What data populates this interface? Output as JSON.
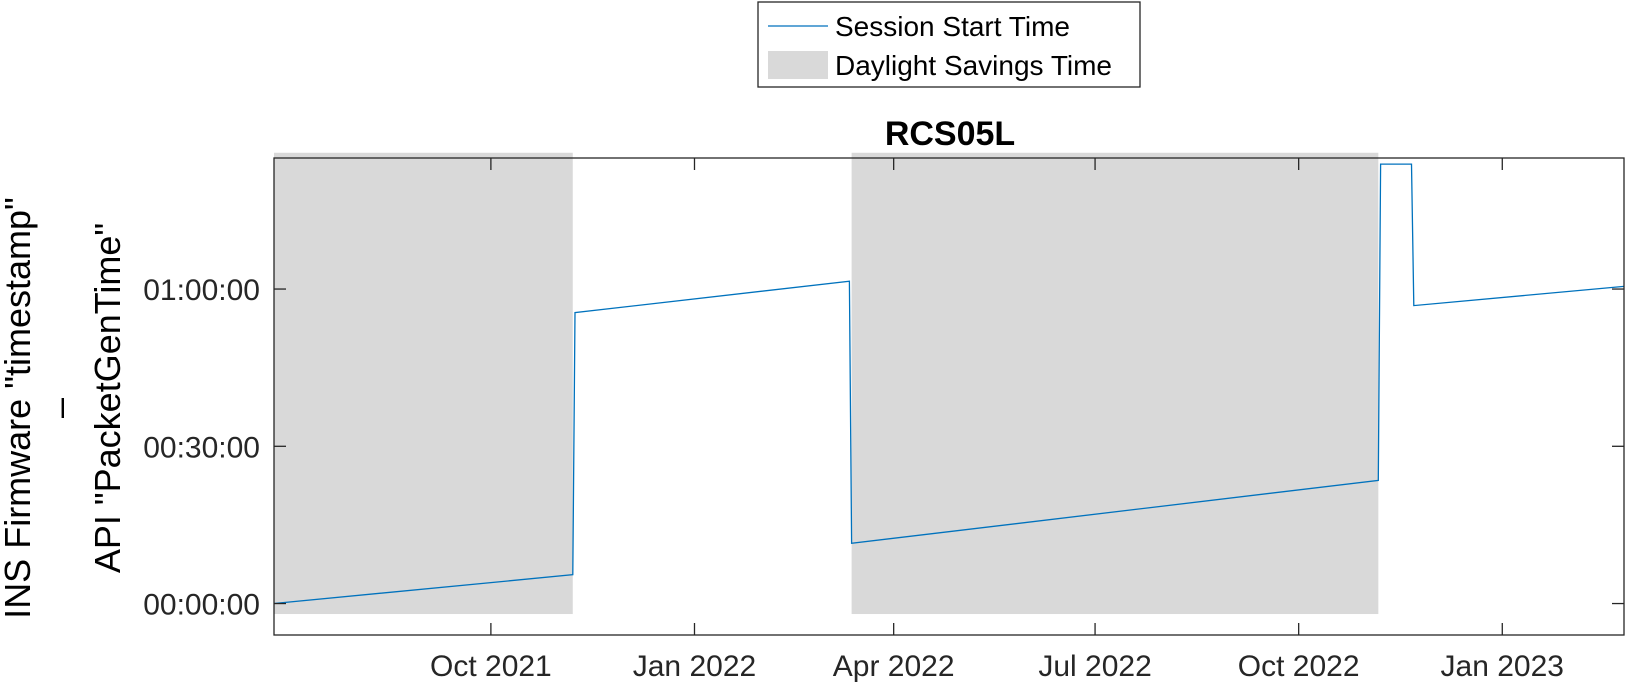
{
  "chart_data": {
    "type": "line",
    "title": "RCS05L",
    "ylabel_line1": "INS Firmware \"timestamp\"",
    "ylabel_line2": "–",
    "ylabel_line3": "API \"PacketGenTime\"",
    "xlabel": "",
    "x_type": "date",
    "xlim": [
      "2021-06-25",
      "2023-02-25"
    ],
    "ylim_seconds": [
      -360,
      5100
    ],
    "xticks": [
      {
        "date": "2021-10-01",
        "label": "Oct 2021"
      },
      {
        "date": "2022-01-01",
        "label": "Jan 2022"
      },
      {
        "date": "2022-04-01",
        "label": "Apr 2022"
      },
      {
        "date": "2022-07-01",
        "label": "Jul 2022"
      },
      {
        "date": "2022-10-01",
        "label": "Oct 2022"
      },
      {
        "date": "2023-01-01",
        "label": "Jan 2023"
      }
    ],
    "yticks": [
      {
        "seconds": 0,
        "label": "00:00:00"
      },
      {
        "seconds": 1800,
        "label": "00:30:00"
      },
      {
        "seconds": 3600,
        "label": "01:00:00"
      }
    ],
    "legend": {
      "placement": "top-center",
      "entries": [
        {
          "label": "Session Start Time",
          "kind": "line",
          "color": "#0072BD"
        },
        {
          "label": "Daylight Savings Time",
          "kind": "patch",
          "color": "#D9D9D9"
        }
      ]
    },
    "shaded_regions": [
      {
        "name": "Daylight Savings Time",
        "x_start": "2021-06-25",
        "x_end": "2021-11-07",
        "y_range_seconds": [
          -120,
          5160
        ]
      },
      {
        "name": "Daylight Savings Time",
        "x_start": "2022-03-13",
        "x_end": "2022-11-06",
        "y_range_seconds": [
          -120,
          5160
        ]
      }
    ],
    "series": [
      {
        "name": "Session Start Time",
        "color": "#0072BD",
        "points": [
          {
            "x": "2021-06-25",
            "y": 0
          },
          {
            "x": "2021-11-07",
            "y": 330
          },
          {
            "x": "2021-11-08",
            "y": 3330
          },
          {
            "x": "2022-03-12",
            "y": 3690
          },
          {
            "x": "2022-03-13",
            "y": 690
          },
          {
            "x": "2022-11-06",
            "y": 1410
          },
          {
            "x": "2022-11-07",
            "y": 5030
          },
          {
            "x": "2022-11-21",
            "y": 5030
          },
          {
            "x": "2022-11-22",
            "y": 3410
          },
          {
            "x": "2023-02-25",
            "y": 3630
          }
        ]
      }
    ]
  }
}
